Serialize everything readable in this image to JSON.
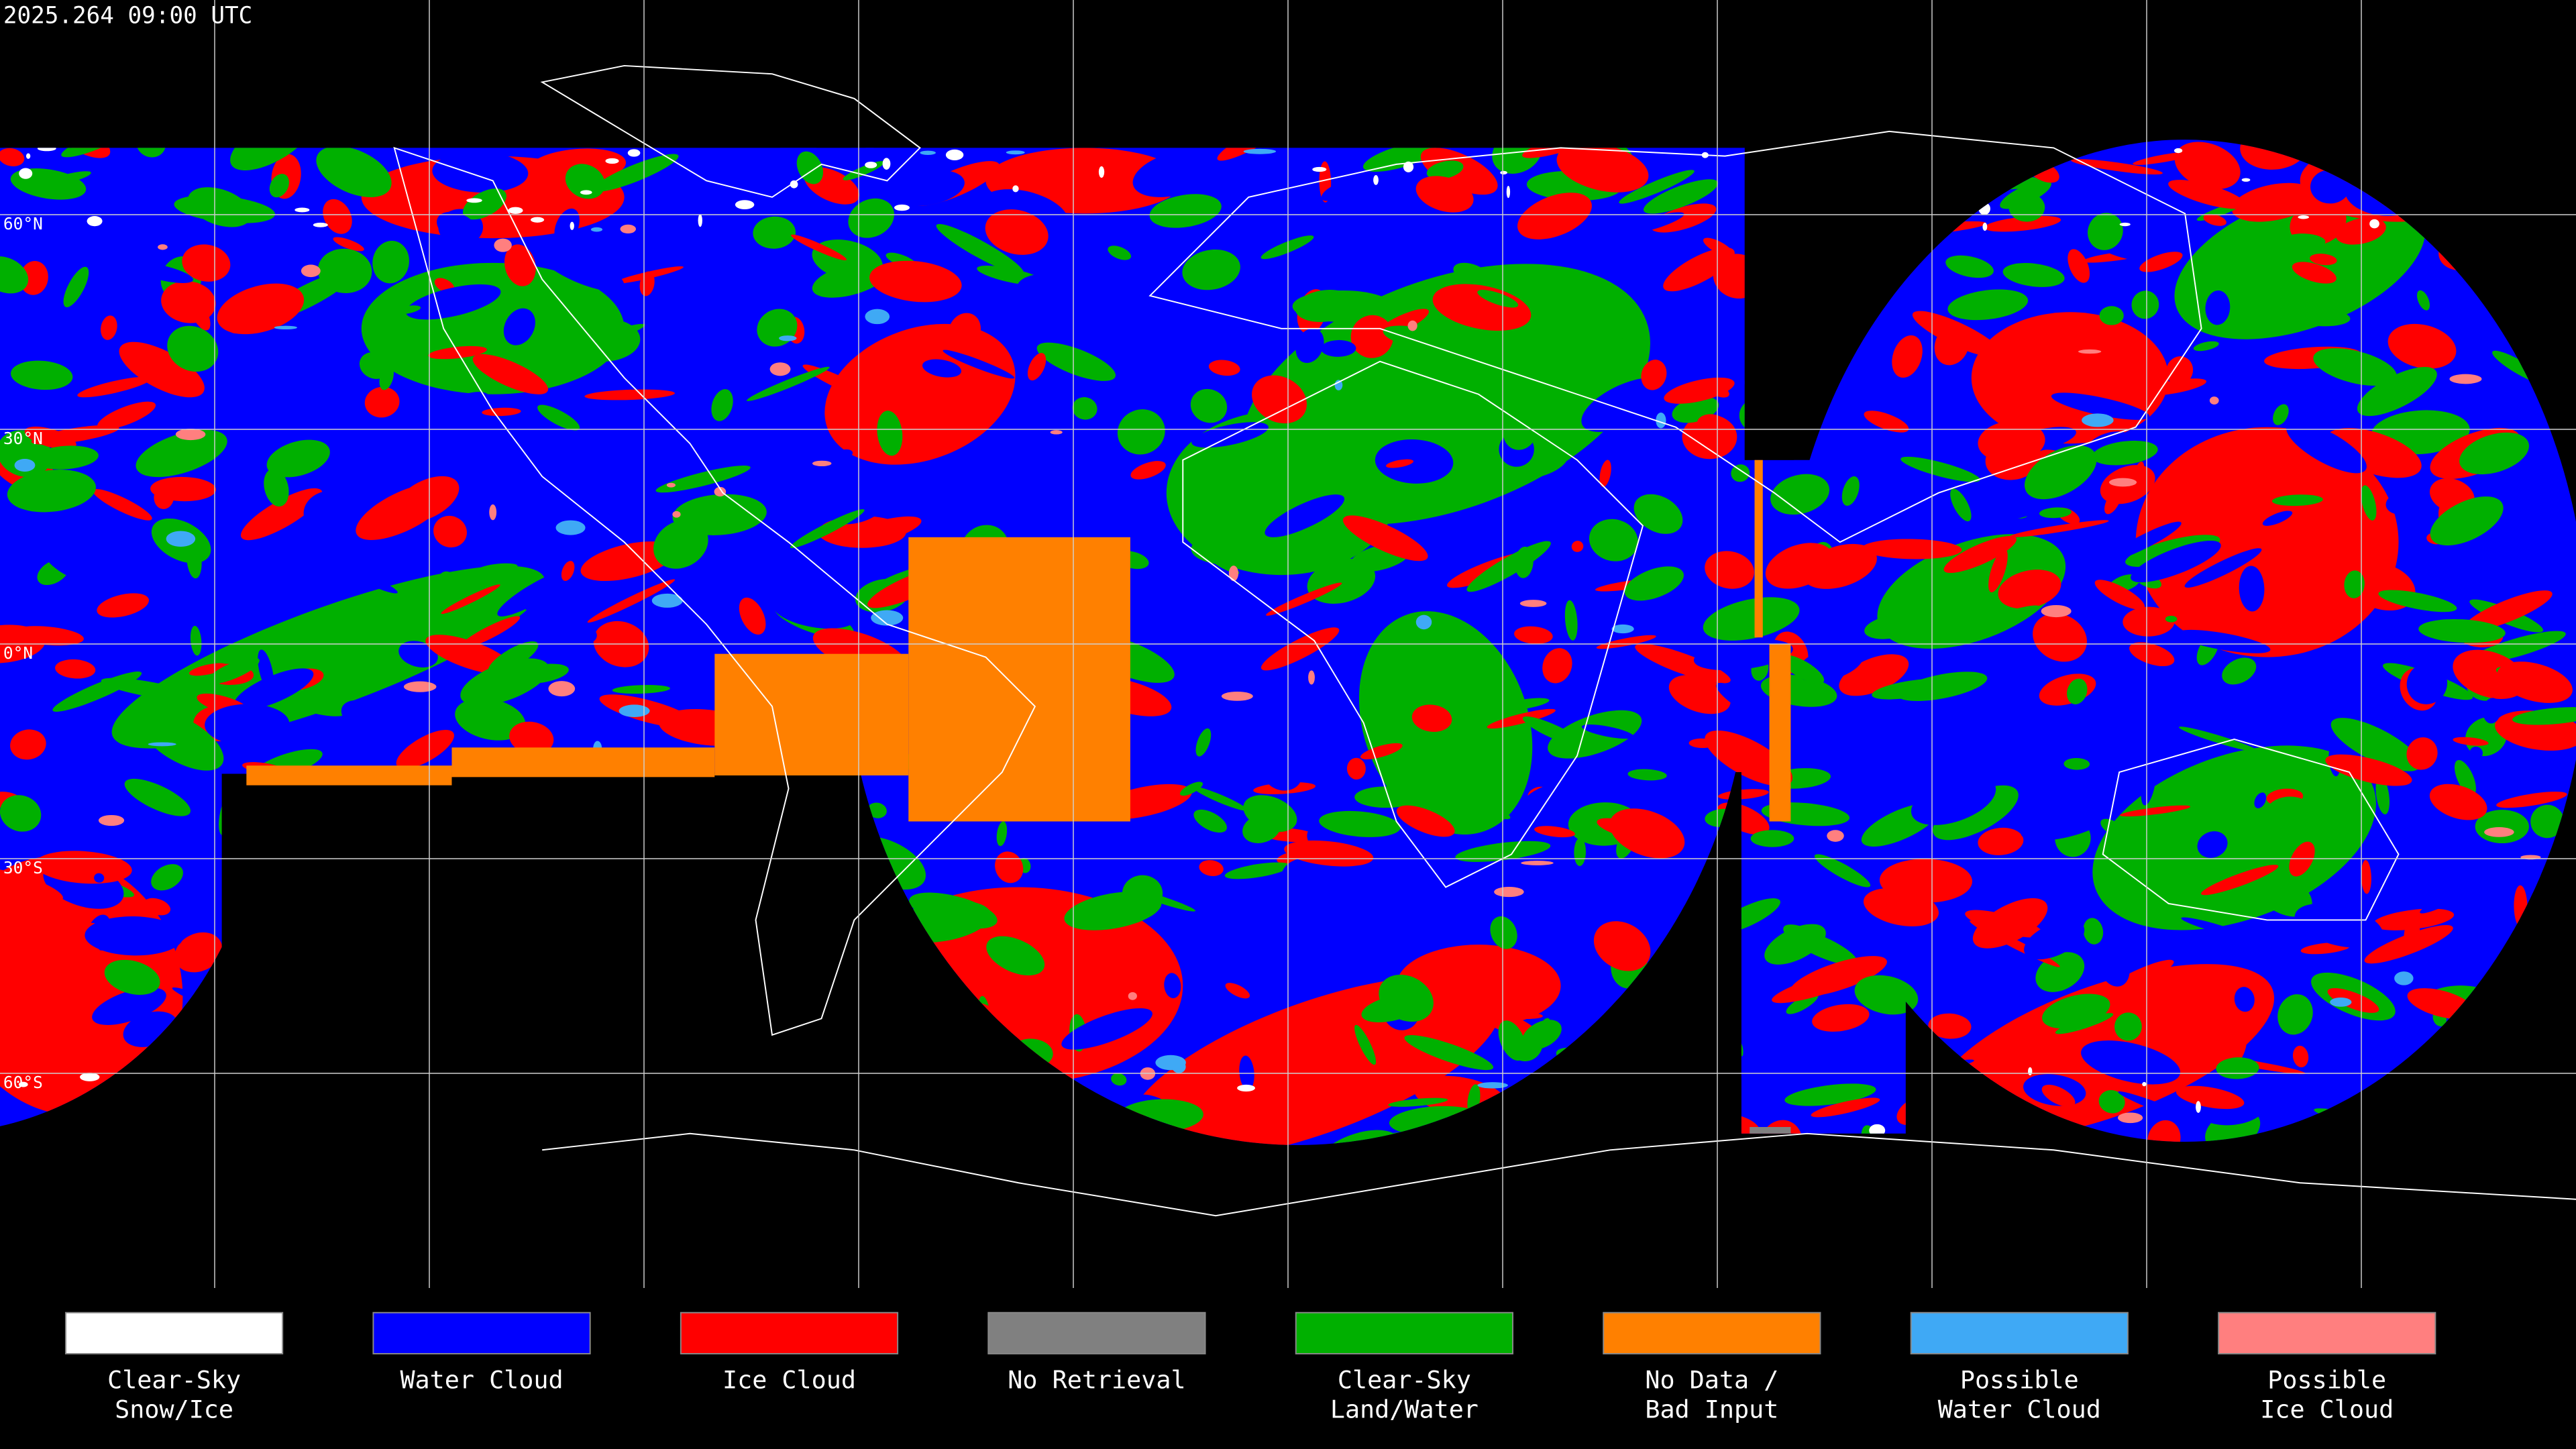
{
  "header": {
    "title": "2025.264 09:00 UTC"
  },
  "lat_labels": [
    "60°N",
    "30°N",
    "0°N",
    "30°S",
    "60°S"
  ],
  "legend": [
    {
      "color": "#ffffff",
      "lines": [
        "Clear-Sky",
        "Snow/Ice"
      ]
    },
    {
      "color": "#0000ff",
      "lines": [
        "Water Cloud"
      ]
    },
    {
      "color": "#ff0000",
      "lines": [
        "Ice Cloud"
      ]
    },
    {
      "color": "#808080",
      "lines": [
        "No Retrieval"
      ]
    },
    {
      "color": "#00b000",
      "lines": [
        "Clear-Sky",
        "Land/Water"
      ]
    },
    {
      "color": "#ff8000",
      "lines": [
        "No Data /",
        "Bad Input"
      ]
    },
    {
      "color": "#3fa9f5",
      "lines": [
        "Possible",
        "Water Cloud"
      ]
    },
    {
      "color": "#ff7f7f",
      "lines": [
        "Possible",
        "Ice Cloud"
      ]
    }
  ]
}
